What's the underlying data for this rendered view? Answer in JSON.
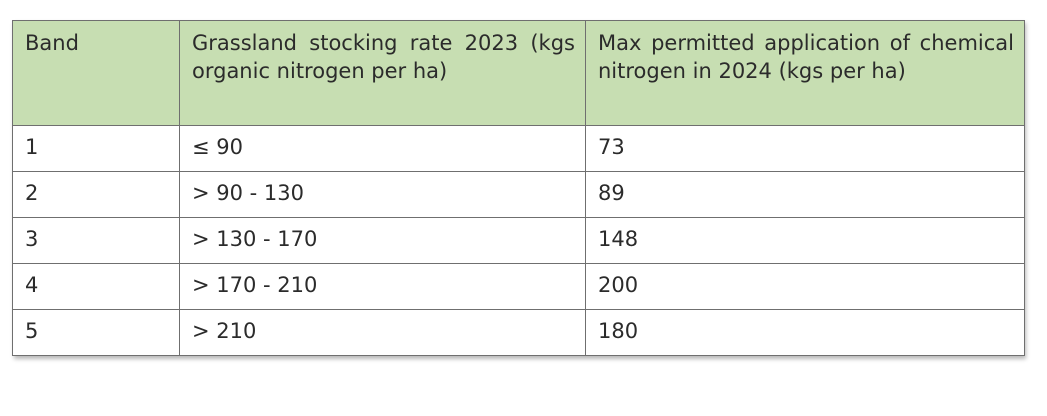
{
  "table": {
    "headers": [
      "Band",
      "Grassland stocking rate 2023 (kgs organic nitrogen per ha)",
      "Max permitted application of chemical nitrogen in 2024 (kgs per ha)"
    ],
    "rows": [
      [
        "1",
        "≤ 90",
        "73"
      ],
      [
        "2",
        "> 90 - 130",
        "89"
      ],
      [
        "3",
        "> 130 - 170",
        "148"
      ],
      [
        "4",
        "> 170 - 210",
        "200"
      ],
      [
        "5",
        "> 210",
        "180"
      ]
    ],
    "colors": {
      "header_background": "#c7deb2",
      "border": "#6f6f6f"
    }
  }
}
